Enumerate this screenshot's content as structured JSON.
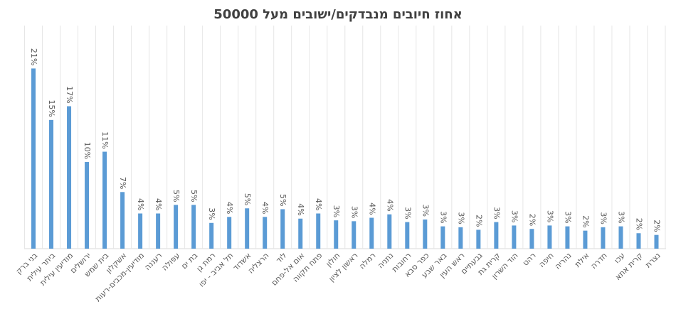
{
  "chart_data": {
    "type": "bar",
    "title": "אחוז חיובים מנבדקים/ישובים מעל 50000",
    "categories": [
      "בני ברק",
      "ביתר עילית",
      "מודיעין עילית",
      "ירושלים",
      "בית שמש",
      "אשקלון",
      "מודיעין-מכבים-רעות",
      "רעננה",
      "עפולה",
      "בת ים",
      "רמת גן",
      "תל אביב - יפו",
      "אשדוד",
      "הרצליה",
      "לוד",
      "אום אל-פחם",
      "פתח תקווה",
      "חולון",
      "ראשון לציון",
      "רמלה",
      "נתניה",
      "רחובות",
      "כפר סבא",
      "באר שבע",
      "ראש העין",
      "גבעתיים",
      "קרית גת",
      "הוד השרון",
      "רהט",
      "חיפה",
      "נהריה",
      "אילת",
      "חדרה",
      "עכו",
      "קרית אתא",
      "נצרת"
    ],
    "values": [
      21.0,
      15.0,
      16.6,
      10.1,
      11.3,
      6.6,
      4.1,
      4.1,
      5.1,
      5.1,
      3.0,
      3.7,
      4.7,
      3.7,
      4.6,
      3.5,
      4.1,
      3.3,
      3.2,
      3.6,
      4.0,
      3.1,
      3.4,
      2.6,
      2.5,
      2.2,
      3.1,
      2.7,
      2.3,
      2.7,
      2.6,
      2.1,
      2.5,
      2.6,
      1.8,
      1.6
    ],
    "value_labels": [
      "21%",
      "15%",
      "17%",
      "10%",
      "11%",
      "7%",
      "4%",
      "4%",
      "5%",
      "5%",
      "3%",
      "4%",
      "5%",
      "4%",
      "5%",
      "4%",
      "4%",
      "3%",
      "3%",
      "4%",
      "4%",
      "3%",
      "3%",
      "3%",
      "3%",
      "2%",
      "3%",
      "3%",
      "2%",
      "3%",
      "3%",
      "2%",
      "3%",
      "3%",
      "2%",
      "2%"
    ],
    "color": "#5b9bd5",
    "ylim": [
      0,
      26
    ]
  }
}
